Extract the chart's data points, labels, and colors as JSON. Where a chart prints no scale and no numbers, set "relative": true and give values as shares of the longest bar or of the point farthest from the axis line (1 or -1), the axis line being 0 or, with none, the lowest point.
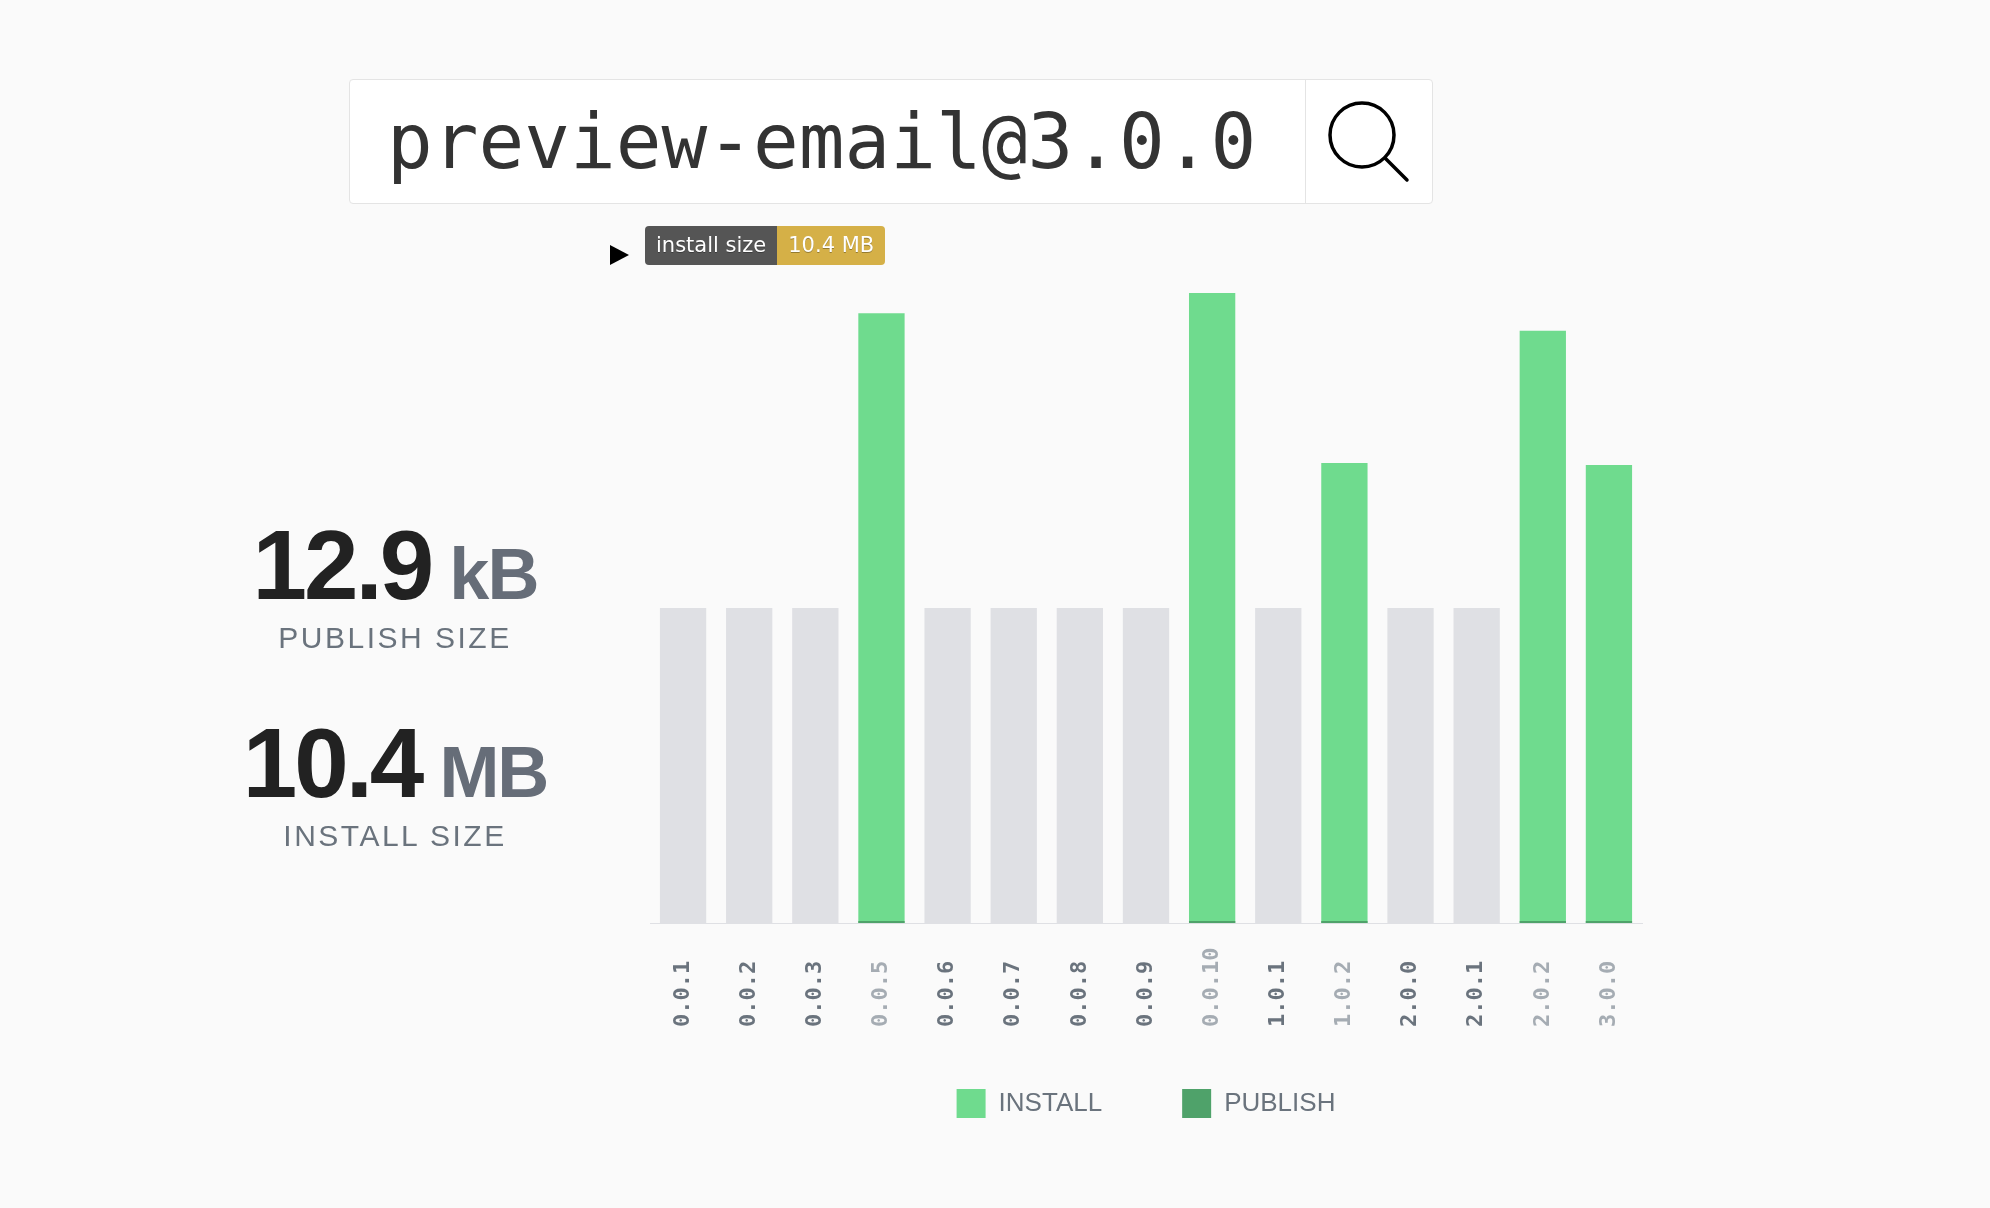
{
  "chart_data": {
    "type": "bar",
    "title": "preview-email@3.0.0",
    "annotations": [
      "install size",
      "10.4 MB",
      "12.9 kB",
      "PUBLISH SIZE",
      "10.4 MB",
      "INSTALL SIZE"
    ],
    "categories": [
      "0.0.1",
      "0.0.2",
      "0.0.3",
      "0.0.5",
      "0.0.6",
      "0.0.7",
      "0.0.8",
      "0.0.9",
      "0.0.10",
      "1.0.1",
      "1.0.2",
      "2.0.0",
      "2.0.1",
      "2.0.2",
      "3.0.0"
    ],
    "relative": true,
    "legend": "bottom",
    "series": [
      {
        "name": "PUBLISH",
        "color": "#4fa26a",
        "values": [
          null,
          null,
          null,
          0.003,
          null,
          null,
          null,
          null,
          0.003,
          null,
          0.003,
          null,
          null,
          0.003,
          0.003
        ]
      },
      {
        "name": "INSTALL",
        "color": "#6fdb8e",
        "values": [
          null,
          null,
          null,
          0.968,
          null,
          null,
          null,
          null,
          1,
          null,
          0.73,
          null,
          null,
          0.94,
          0.727
        ]
      },
      {
        "color": "#dfe0e4",
        "values": [
          0.5,
          0.5,
          0.5,
          null,
          0.5,
          0.5,
          0.5,
          0.5,
          null,
          0.5,
          null,
          0.5,
          0.5,
          null,
          null
        ]
      }
    ]
  }
}
